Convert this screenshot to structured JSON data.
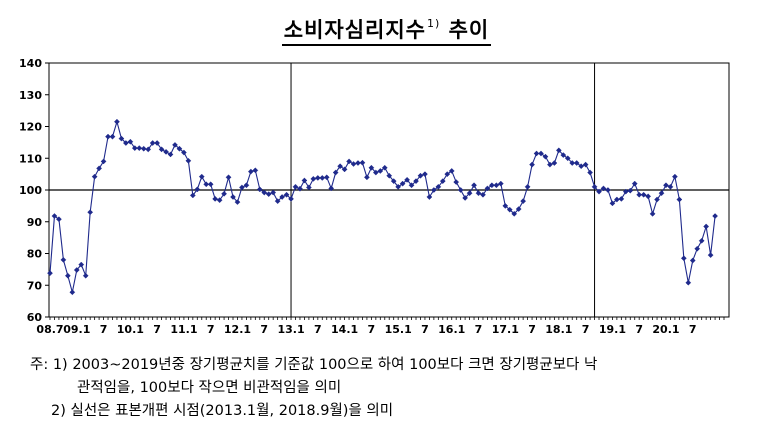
{
  "title": {
    "text": "소비자심리지수",
    "sup": "1)",
    "suffix": "추이"
  },
  "chart_data": {
    "type": "line",
    "title": "소비자심리지수 추이",
    "ylim": [
      60,
      140
    ],
    "yticks": [
      60,
      70,
      80,
      90,
      100,
      110,
      120,
      130,
      140
    ],
    "reference_line": 100,
    "structural_breaks": [
      "2013.1",
      "2018.9"
    ],
    "x_start": "2008.7",
    "x_end": "2021.2",
    "xtick_labels": [
      {
        "label": "08.7",
        "month": "2008.7"
      },
      {
        "label": "09.1",
        "month": "2009.1"
      },
      {
        "label": "7",
        "month": "2009.7"
      },
      {
        "label": "10.1",
        "month": "2010.1"
      },
      {
        "label": "7",
        "month": "2010.7"
      },
      {
        "label": "11.1",
        "month": "2011.1"
      },
      {
        "label": "7",
        "month": "2011.7"
      },
      {
        "label": "12.1",
        "month": "2012.1"
      },
      {
        "label": "7",
        "month": "2012.7"
      },
      {
        "label": "13.1",
        "month": "2013.1"
      },
      {
        "label": "7",
        "month": "2013.7"
      },
      {
        "label": "14.1",
        "month": "2014.1"
      },
      {
        "label": "7",
        "month": "2014.7"
      },
      {
        "label": "15.1",
        "month": "2015.1"
      },
      {
        "label": "7",
        "month": "2015.7"
      },
      {
        "label": "16.1",
        "month": "2016.1"
      },
      {
        "label": "7",
        "month": "2016.7"
      },
      {
        "label": "17.1",
        "month": "2017.1"
      },
      {
        "label": "7",
        "month": "2017.7"
      },
      {
        "label": "18.1",
        "month": "2018.1"
      },
      {
        "label": "7",
        "month": "2018.7"
      },
      {
        "label": "19.1",
        "month": "2019.1"
      },
      {
        "label": "7",
        "month": "2019.7"
      },
      {
        "label": "20.1",
        "month": "2020.1"
      },
      {
        "label": "7",
        "month": "2020.7"
      }
    ],
    "series": [
      {
        "color": "#1f2a8c",
        "values": [
          73.8,
          91.8,
          90.8,
          78.0,
          73.0,
          67.8,
          74.8,
          76.5,
          73.0,
          93.0,
          104.2,
          106.8,
          109.0,
          116.8,
          116.8,
          121.5,
          116.2,
          114.8,
          115.2,
          113.2,
          113.2,
          113.0,
          112.8,
          114.8,
          114.8,
          112.8,
          112.0,
          111.2,
          114.2,
          113.0,
          111.8,
          109.2,
          98.3,
          100.2,
          104.2,
          101.8,
          101.8,
          97.2,
          96.8,
          98.8,
          104.0,
          97.8,
          96.2,
          100.8,
          101.5,
          105.8,
          106.2,
          100.2,
          99.2,
          98.7,
          99.2,
          96.5,
          97.8,
          98.5,
          97.2,
          101.0,
          100.4,
          103.0,
          100.8,
          103.5,
          103.8,
          103.8,
          104.0,
          100.5,
          105.5,
          107.5,
          106.5,
          109.0,
          108.2,
          108.5,
          108.6,
          104.0,
          107.0,
          105.5,
          106.0,
          107.0,
          104.5,
          102.8,
          101.0,
          102.0,
          103.2,
          101.5,
          102.8,
          104.5,
          105.0,
          97.8,
          100.0,
          101.0,
          102.8,
          105.0,
          106.0,
          102.5,
          100.0,
          97.5,
          99.0,
          101.5,
          99.0,
          98.5,
          100.5,
          101.5,
          101.5,
          102.0,
          95.0,
          93.8,
          92.5,
          94.0,
          96.5,
          101.0,
          108.0,
          111.5,
          111.5,
          110.5,
          108.0,
          108.5,
          112.5,
          111.0,
          110.0,
          108.5,
          108.5,
          107.5,
          108.0,
          105.5,
          101.0,
          99.5,
          100.5,
          100.0,
          95.8,
          97.0,
          97.2,
          99.5,
          99.8,
          102.0,
          98.5,
          98.5,
          98.0,
          92.5,
          97.0,
          99.0,
          101.5,
          101.0,
          104.2,
          97.0,
          78.5,
          70.8,
          77.8,
          81.5,
          84.0,
          88.5,
          79.5,
          91.8
        ]
      }
    ]
  },
  "notes": {
    "line1": "주:  1)  2003~2019년중 장기평균치를 기준값 100으로 하여 100보다 크면 장기평균보다 낙",
    "line1b": "관적임을, 100보다 작으면 비관적임을 의미",
    "line2": "2) 실선은 표본개편 시점(2013.1월, 2018.9월)을 의미"
  }
}
